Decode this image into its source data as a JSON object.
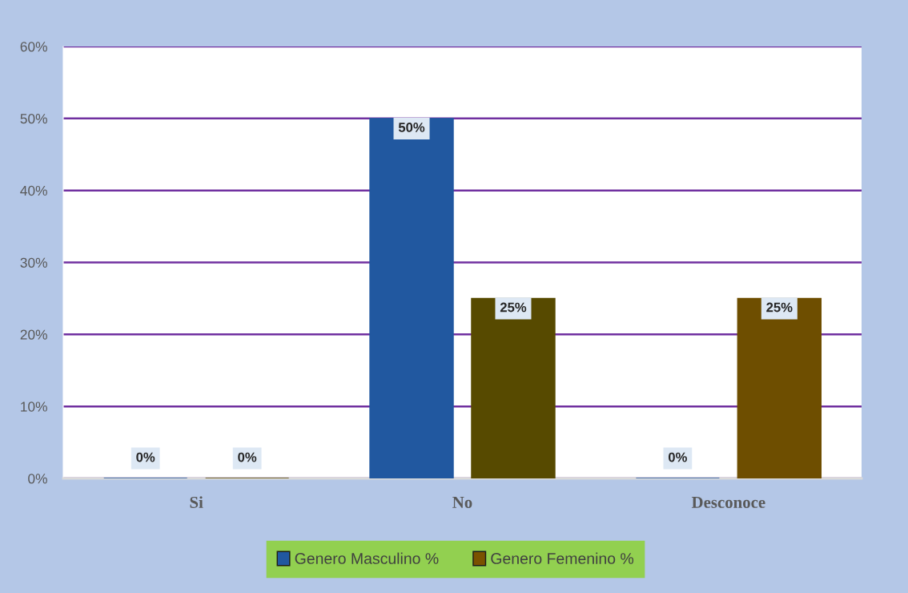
{
  "chart_data": {
    "type": "bar",
    "categories": [
      "Si",
      "No",
      "Desconoce"
    ],
    "series": [
      {
        "name": "Genero Masculino %",
        "color": "#2158a0",
        "values": [
          0,
          50,
          0
        ],
        "value_labels": [
          "0%",
          "50%",
          "0%"
        ]
      },
      {
        "name": "Genero Femenino %",
        "color": "#7a5200",
        "colors": [
          "#574a00",
          "#574a00",
          "#6e4e00"
        ],
        "values": [
          0,
          25,
          25
        ],
        "value_labels": [
          "0%",
          "25%",
          "25%"
        ]
      }
    ],
    "ylim": [
      0,
      60
    ],
    "yticks": [
      {
        "value": 0,
        "label": "0%"
      },
      {
        "value": 10,
        "label": "10%"
      },
      {
        "value": 20,
        "label": "20%"
      },
      {
        "value": 30,
        "label": "30%"
      },
      {
        "value": 40,
        "label": "40%"
      },
      {
        "value": 50,
        "label": "50%"
      },
      {
        "value": 60,
        "label": "60%"
      }
    ],
    "grid": "y",
    "legend": "bottom"
  }
}
